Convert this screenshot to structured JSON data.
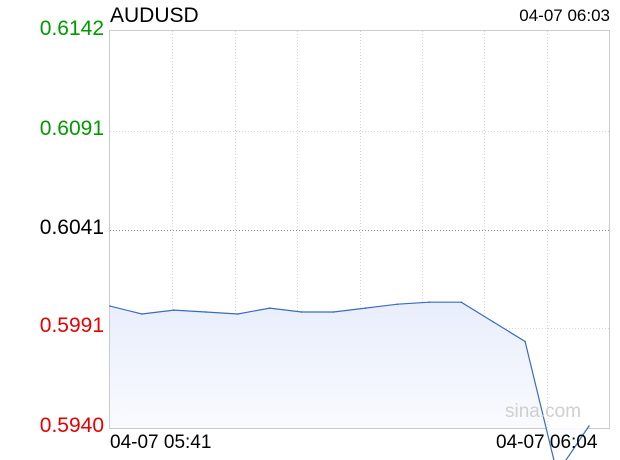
{
  "header": {
    "symbol": "AUDUSD",
    "timestamp": "04-07 06:03"
  },
  "watermark": "sina.com",
  "colors": {
    "up": "#009900",
    "down": "#e60000",
    "neutral": "#000000",
    "line": "#3a6bc4"
  },
  "chart_data": {
    "type": "area",
    "title": "AUDUSD",
    "xlabel": "",
    "ylabel": "",
    "ylim": [
      0.594,
      0.6142
    ],
    "reference_value": 0.6041,
    "y_ticks": [
      {
        "value": 0.6142,
        "label": "0.6142",
        "tone": "up"
      },
      {
        "value": 0.6091,
        "label": "0.6091",
        "tone": "up"
      },
      {
        "value": 0.6041,
        "label": "0.6041",
        "tone": "neutral"
      },
      {
        "value": 0.5991,
        "label": "0.5991",
        "tone": "down"
      },
      {
        "value": 0.594,
        "label": "0.5940",
        "tone": "down"
      }
    ],
    "x_range_labels": [
      "04-07 05:41",
      "04-07 06:04"
    ],
    "series": [
      {
        "values": [
          0.6002,
          0.5998,
          0.6,
          0.5999,
          0.5998,
          0.6001,
          0.5999,
          0.5999,
          0.6001,
          0.6003,
          0.6004,
          0.6004,
          0.5994,
          0.5984,
          0.5917,
          0.5941
        ]
      }
    ]
  }
}
